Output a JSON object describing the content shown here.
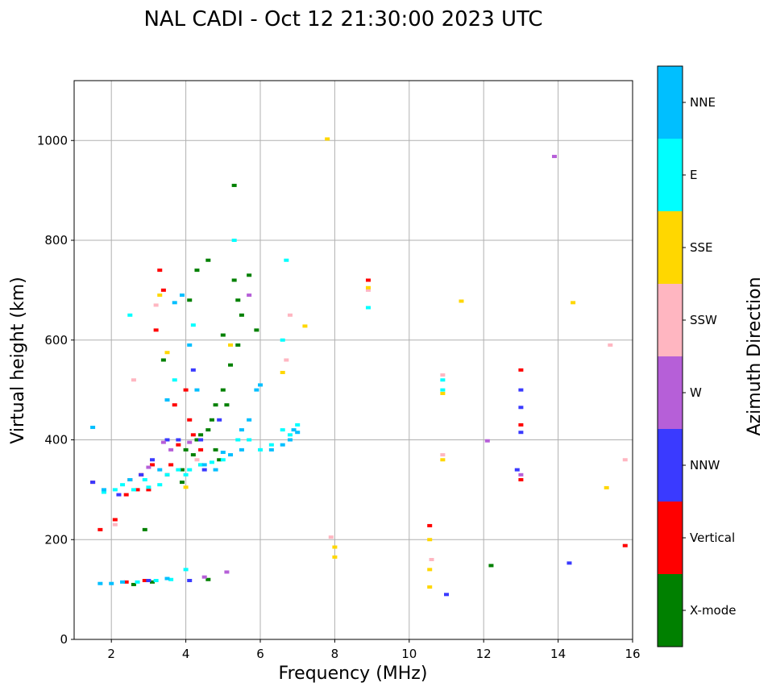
{
  "chart_data": {
    "type": "scatter",
    "title": "NAL CADI - Oct 12 21:30:00 2023 UTC",
    "xlabel": "Frequency (MHz)",
    "ylabel": "Virtual height (km)",
    "xlim": [
      1,
      16
    ],
    "ylim": [
      0,
      1120
    ],
    "xticks": [
      2,
      4,
      6,
      8,
      10,
      12,
      14,
      16
    ],
    "yticks": [
      0,
      200,
      400,
      600,
      800,
      1000
    ],
    "grid": true,
    "colorbar": {
      "label": "Azimuth Direction",
      "categories": [
        {
          "name": "X-mode",
          "color": "#008000"
        },
        {
          "name": "Vertical",
          "color": "#ff0000"
        },
        {
          "name": "NNW",
          "color": "#3a3aff"
        },
        {
          "name": "W",
          "color": "#b65fd8"
        },
        {
          "name": "SSW",
          "color": "#ffb6c1"
        },
        {
          "name": "SSE",
          "color": "#ffd700"
        },
        {
          "name": "E",
          "color": "#00ffff"
        },
        {
          "name": "NNE",
          "color": "#00bfff"
        }
      ]
    },
    "series": [
      {
        "name": "X-mode",
        "points": [
          [
            2.9,
            220
          ],
          [
            3.4,
            560
          ],
          [
            3.9,
            315
          ],
          [
            3.9,
            340
          ],
          [
            4.0,
            380
          ],
          [
            4.1,
            680
          ],
          [
            4.2,
            370
          ],
          [
            4.3,
            400
          ],
          [
            4.3,
            740
          ],
          [
            4.4,
            350
          ],
          [
            4.4,
            410
          ],
          [
            4.6,
            420
          ],
          [
            4.6,
            760
          ],
          [
            4.6,
            120
          ],
          [
            4.7,
            440
          ],
          [
            4.8,
            380
          ],
          [
            4.8,
            470
          ],
          [
            4.9,
            360
          ],
          [
            5.0,
            500
          ],
          [
            5.0,
            610
          ],
          [
            5.1,
            470
          ],
          [
            5.2,
            550
          ],
          [
            5.3,
            720
          ],
          [
            5.3,
            910
          ],
          [
            5.4,
            590
          ],
          [
            5.4,
            680
          ],
          [
            5.5,
            650
          ],
          [
            5.7,
            730
          ],
          [
            5.9,
            620
          ],
          [
            12.2,
            148
          ],
          [
            3.1,
            115
          ],
          [
            2.6,
            110
          ]
        ]
      },
      {
        "name": "Vertical",
        "points": [
          [
            1.5,
            315
          ],
          [
            1.7,
            220
          ],
          [
            2.1,
            240
          ],
          [
            2.4,
            290
          ],
          [
            2.5,
            320
          ],
          [
            2.7,
            300
          ],
          [
            2.8,
            330
          ],
          [
            3.0,
            300
          ],
          [
            3.1,
            350
          ],
          [
            3.2,
            620
          ],
          [
            3.3,
            740
          ],
          [
            3.4,
            700
          ],
          [
            3.5,
            330
          ],
          [
            3.6,
            350
          ],
          [
            3.7,
            470
          ],
          [
            3.8,
            390
          ],
          [
            4.0,
            500
          ],
          [
            4.1,
            440
          ],
          [
            4.2,
            410
          ],
          [
            4.4,
            380
          ],
          [
            2.4,
            115
          ],
          [
            2.9,
            118
          ],
          [
            8.9,
            720
          ],
          [
            10.55,
            228
          ],
          [
            13.0,
            540
          ],
          [
            13.0,
            430
          ],
          [
            13.0,
            320
          ],
          [
            15.8,
            188
          ]
        ]
      },
      {
        "name": "NNW",
        "points": [
          [
            1.5,
            315
          ],
          [
            2.2,
            290
          ],
          [
            2.8,
            330
          ],
          [
            3.1,
            360
          ],
          [
            3.5,
            400
          ],
          [
            3.8,
            400
          ],
          [
            4.2,
            540
          ],
          [
            4.4,
            400
          ],
          [
            4.5,
            340
          ],
          [
            4.9,
            440
          ],
          [
            3.0,
            118
          ],
          [
            4.1,
            118
          ],
          [
            11.0,
            90
          ],
          [
            13.0,
            465
          ],
          [
            13.0,
            500
          ],
          [
            13.0,
            415
          ],
          [
            12.9,
            340
          ],
          [
            14.3,
            153
          ]
        ]
      },
      {
        "name": "W",
        "points": [
          [
            3.0,
            345
          ],
          [
            3.4,
            395
          ],
          [
            3.6,
            380
          ],
          [
            4.1,
            395
          ],
          [
            4.5,
            125
          ],
          [
            5.1,
            135
          ],
          [
            5.7,
            690
          ],
          [
            12.1,
            398
          ],
          [
            13.9,
            968
          ],
          [
            13.0,
            330
          ]
        ]
      },
      {
        "name": "SSW",
        "points": [
          [
            2.1,
            230
          ],
          [
            2.6,
            520
          ],
          [
            3.2,
            670
          ],
          [
            4.3,
            360
          ],
          [
            6.8,
            650
          ],
          [
            6.7,
            560
          ],
          [
            7.9,
            205
          ],
          [
            8.9,
            700
          ],
          [
            10.9,
            530
          ],
          [
            10.9,
            370
          ],
          [
            10.6,
            160
          ],
          [
            15.4,
            590
          ],
          [
            15.8,
            360
          ]
        ]
      },
      {
        "name": "SSE",
        "points": [
          [
            3.3,
            690
          ],
          [
            3.5,
            575
          ],
          [
            4.0,
            305
          ],
          [
            5.2,
            590
          ],
          [
            6.6,
            535
          ],
          [
            7.2,
            628
          ],
          [
            7.8,
            1003
          ],
          [
            8.0,
            185
          ],
          [
            8.0,
            165
          ],
          [
            8.9,
            705
          ],
          [
            10.55,
            200
          ],
          [
            10.55,
            140
          ],
          [
            10.55,
            105
          ],
          [
            10.9,
            493
          ],
          [
            10.9,
            360
          ],
          [
            11.4,
            678
          ],
          [
            14.4,
            675
          ],
          [
            15.3,
            304
          ]
        ]
      },
      {
        "name": "E",
        "points": [
          [
            1.8,
            295
          ],
          [
            2.1,
            300
          ],
          [
            2.3,
            310
          ],
          [
            2.6,
            300
          ],
          [
            2.9,
            320
          ],
          [
            3.0,
            305
          ],
          [
            3.3,
            310
          ],
          [
            3.5,
            330
          ],
          [
            3.7,
            520
          ],
          [
            3.8,
            340
          ],
          [
            4.0,
            330
          ],
          [
            4.1,
            340
          ],
          [
            4.2,
            630
          ],
          [
            4.4,
            350
          ],
          [
            4.7,
            355
          ],
          [
            5.0,
            360
          ],
          [
            5.4,
            400
          ],
          [
            5.7,
            400
          ],
          [
            6.0,
            380
          ],
          [
            6.3,
            390
          ],
          [
            6.6,
            420
          ],
          [
            6.8,
            410
          ],
          [
            7.0,
            430
          ],
          [
            6.6,
            600
          ],
          [
            6.7,
            760
          ],
          [
            5.3,
            800
          ],
          [
            2.5,
            650
          ],
          [
            2.7,
            115
          ],
          [
            3.2,
            118
          ],
          [
            3.6,
            120
          ],
          [
            4.0,
            140
          ],
          [
            10.9,
            500
          ],
          [
            10.9,
            520
          ],
          [
            8.9,
            665
          ]
        ]
      },
      {
        "name": "NNE",
        "points": [
          [
            1.5,
            425
          ],
          [
            1.8,
            300
          ],
          [
            2.5,
            320
          ],
          [
            3.3,
            340
          ],
          [
            3.5,
            480
          ],
          [
            3.7,
            675
          ],
          [
            3.9,
            690
          ],
          [
            4.1,
            590
          ],
          [
            4.3,
            500
          ],
          [
            4.5,
            350
          ],
          [
            4.8,
            340
          ],
          [
            5.0,
            375
          ],
          [
            5.2,
            370
          ],
          [
            5.5,
            380
          ],
          [
            5.5,
            420
          ],
          [
            5.7,
            440
          ],
          [
            5.9,
            500
          ],
          [
            6.0,
            510
          ],
          [
            6.3,
            380
          ],
          [
            6.6,
            390
          ],
          [
            6.8,
            400
          ],
          [
            6.9,
            420
          ],
          [
            7.0,
            415
          ],
          [
            1.7,
            112
          ],
          [
            2.0,
            112
          ],
          [
            2.3,
            115
          ],
          [
            3.5,
            122
          ]
        ]
      }
    ]
  }
}
